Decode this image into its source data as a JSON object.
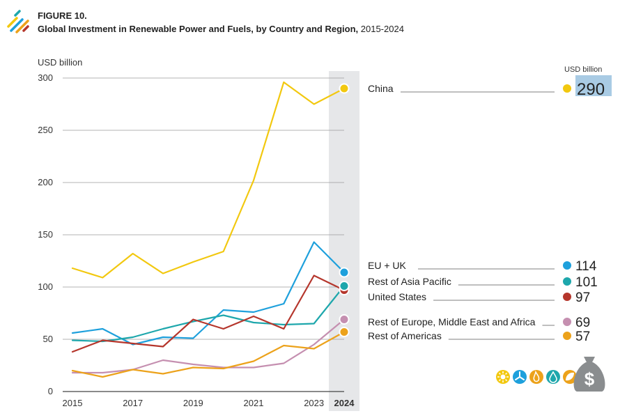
{
  "header": {
    "figure_label": "FIGURE 10.",
    "title_bold": "Global Investment in Renewable Power and Fuels, by Country and Region,",
    "title_years": " 2015-2024"
  },
  "legend_unit": "USD billion",
  "colors": {
    "china": "#f2c80f",
    "eu_uk": "#1ea0dc",
    "asia_pacific": "#1ea7ac",
    "united_states": "#b5362c",
    "europe_mea": "#c58fb0",
    "americas": "#eca21b",
    "highlight_band": "#e6e7e9",
    "grid": "#9a9a9a",
    "value_highlight": "#a9cbe4"
  },
  "icons": [
    "sun-icon",
    "wind-turbine-icon",
    "flame-icon",
    "water-drop-icon",
    "leaf-icon",
    "money-bag-icon"
  ],
  "chart_data": {
    "type": "line",
    "title": "Global Investment in Renewable Power and Fuels, by Country and Region, 2015-2024",
    "ylabel": "USD billion",
    "xlabel": "",
    "ylim": [
      0,
      300
    ],
    "yticks": [
      0,
      50,
      100,
      150,
      200,
      250,
      300
    ],
    "x": [
      2015,
      2016,
      2017,
      2018,
      2019,
      2020,
      2021,
      2022,
      2023,
      2024
    ],
    "xtick_labels": [
      "2015",
      "2017",
      "2019",
      "2021",
      "2023",
      "2024"
    ],
    "highlight_year": "2024",
    "grid": true,
    "series": [
      {
        "key": "china",
        "name": "China",
        "values": [
          118,
          109,
          132,
          113,
          124,
          134,
          202,
          296,
          275,
          290
        ],
        "final_label": "290"
      },
      {
        "key": "eu_uk",
        "name": "EU + UK",
        "values": [
          56,
          60,
          45,
          52,
          51,
          78,
          76,
          84,
          143,
          114
        ],
        "final_label": "114"
      },
      {
        "key": "asia_pacific",
        "name": "Rest of Asia Pacific",
        "values": [
          49,
          48,
          52,
          60,
          67,
          73,
          66,
          64,
          65,
          101
        ],
        "final_label": "101"
      },
      {
        "key": "united_states",
        "name": "United States",
        "values": [
          38,
          49,
          46,
          43,
          69,
          60,
          72,
          60,
          111,
          97
        ],
        "final_label": "97"
      },
      {
        "key": "europe_mea",
        "name": "Rest of Europe, Middle East and Africa",
        "values": [
          18,
          18,
          21,
          30,
          26,
          23,
          23,
          27,
          45,
          69
        ],
        "final_label": "69"
      },
      {
        "key": "americas",
        "name": "Rest of Americas",
        "values": [
          20,
          14,
          21,
          17,
          23,
          22,
          29,
          44,
          41,
          57
        ],
        "final_label": "57"
      }
    ]
  }
}
